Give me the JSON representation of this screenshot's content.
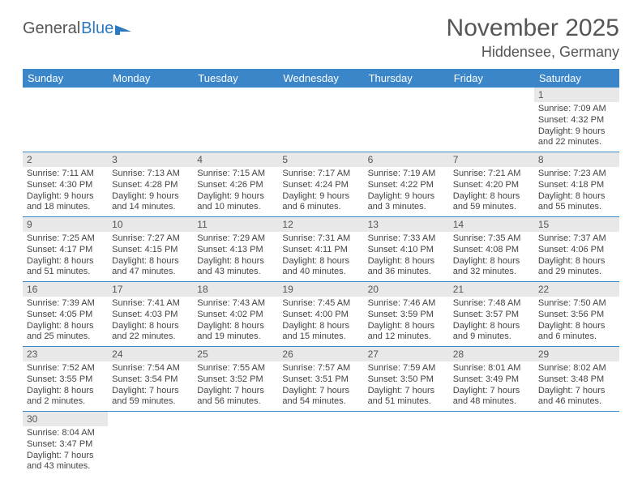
{
  "brand": {
    "part1": "General",
    "part2": "Blue"
  },
  "title": "November 2025",
  "location": "Hiddensee, Germany",
  "colors": {
    "header_bg": "#3a86c8",
    "header_fg": "#ffffff",
    "daynum_bg": "#e8e8e8",
    "cell_border": "#3a86c8",
    "text": "#444444",
    "brand_blue": "#2d79c0"
  },
  "day_headers": [
    "Sunday",
    "Monday",
    "Tuesday",
    "Wednesday",
    "Thursday",
    "Friday",
    "Saturday"
  ],
  "weeks": [
    [
      {
        "n": "",
        "sunrise": "",
        "sunset": "",
        "daylight1": "",
        "daylight2": "",
        "empty": true
      },
      {
        "n": "",
        "sunrise": "",
        "sunset": "",
        "daylight1": "",
        "daylight2": "",
        "empty": true
      },
      {
        "n": "",
        "sunrise": "",
        "sunset": "",
        "daylight1": "",
        "daylight2": "",
        "empty": true
      },
      {
        "n": "",
        "sunrise": "",
        "sunset": "",
        "daylight1": "",
        "daylight2": "",
        "empty": true
      },
      {
        "n": "",
        "sunrise": "",
        "sunset": "",
        "daylight1": "",
        "daylight2": "",
        "empty": true
      },
      {
        "n": "",
        "sunrise": "",
        "sunset": "",
        "daylight1": "",
        "daylight2": "",
        "empty": true
      },
      {
        "n": "1",
        "sunrise": "Sunrise: 7:09 AM",
        "sunset": "Sunset: 4:32 PM",
        "daylight1": "Daylight: 9 hours",
        "daylight2": "and 22 minutes."
      }
    ],
    [
      {
        "n": "2",
        "sunrise": "Sunrise: 7:11 AM",
        "sunset": "Sunset: 4:30 PM",
        "daylight1": "Daylight: 9 hours",
        "daylight2": "and 18 minutes."
      },
      {
        "n": "3",
        "sunrise": "Sunrise: 7:13 AM",
        "sunset": "Sunset: 4:28 PM",
        "daylight1": "Daylight: 9 hours",
        "daylight2": "and 14 minutes."
      },
      {
        "n": "4",
        "sunrise": "Sunrise: 7:15 AM",
        "sunset": "Sunset: 4:26 PM",
        "daylight1": "Daylight: 9 hours",
        "daylight2": "and 10 minutes."
      },
      {
        "n": "5",
        "sunrise": "Sunrise: 7:17 AM",
        "sunset": "Sunset: 4:24 PM",
        "daylight1": "Daylight: 9 hours",
        "daylight2": "and 6 minutes."
      },
      {
        "n": "6",
        "sunrise": "Sunrise: 7:19 AM",
        "sunset": "Sunset: 4:22 PM",
        "daylight1": "Daylight: 9 hours",
        "daylight2": "and 3 minutes."
      },
      {
        "n": "7",
        "sunrise": "Sunrise: 7:21 AM",
        "sunset": "Sunset: 4:20 PM",
        "daylight1": "Daylight: 8 hours",
        "daylight2": "and 59 minutes."
      },
      {
        "n": "8",
        "sunrise": "Sunrise: 7:23 AM",
        "sunset": "Sunset: 4:18 PM",
        "daylight1": "Daylight: 8 hours",
        "daylight2": "and 55 minutes."
      }
    ],
    [
      {
        "n": "9",
        "sunrise": "Sunrise: 7:25 AM",
        "sunset": "Sunset: 4:17 PM",
        "daylight1": "Daylight: 8 hours",
        "daylight2": "and 51 minutes."
      },
      {
        "n": "10",
        "sunrise": "Sunrise: 7:27 AM",
        "sunset": "Sunset: 4:15 PM",
        "daylight1": "Daylight: 8 hours",
        "daylight2": "and 47 minutes."
      },
      {
        "n": "11",
        "sunrise": "Sunrise: 7:29 AM",
        "sunset": "Sunset: 4:13 PM",
        "daylight1": "Daylight: 8 hours",
        "daylight2": "and 43 minutes."
      },
      {
        "n": "12",
        "sunrise": "Sunrise: 7:31 AM",
        "sunset": "Sunset: 4:11 PM",
        "daylight1": "Daylight: 8 hours",
        "daylight2": "and 40 minutes."
      },
      {
        "n": "13",
        "sunrise": "Sunrise: 7:33 AM",
        "sunset": "Sunset: 4:10 PM",
        "daylight1": "Daylight: 8 hours",
        "daylight2": "and 36 minutes."
      },
      {
        "n": "14",
        "sunrise": "Sunrise: 7:35 AM",
        "sunset": "Sunset: 4:08 PM",
        "daylight1": "Daylight: 8 hours",
        "daylight2": "and 32 minutes."
      },
      {
        "n": "15",
        "sunrise": "Sunrise: 7:37 AM",
        "sunset": "Sunset: 4:06 PM",
        "daylight1": "Daylight: 8 hours",
        "daylight2": "and 29 minutes."
      }
    ],
    [
      {
        "n": "16",
        "sunrise": "Sunrise: 7:39 AM",
        "sunset": "Sunset: 4:05 PM",
        "daylight1": "Daylight: 8 hours",
        "daylight2": "and 25 minutes."
      },
      {
        "n": "17",
        "sunrise": "Sunrise: 7:41 AM",
        "sunset": "Sunset: 4:03 PM",
        "daylight1": "Daylight: 8 hours",
        "daylight2": "and 22 minutes."
      },
      {
        "n": "18",
        "sunrise": "Sunrise: 7:43 AM",
        "sunset": "Sunset: 4:02 PM",
        "daylight1": "Daylight: 8 hours",
        "daylight2": "and 19 minutes."
      },
      {
        "n": "19",
        "sunrise": "Sunrise: 7:45 AM",
        "sunset": "Sunset: 4:00 PM",
        "daylight1": "Daylight: 8 hours",
        "daylight2": "and 15 minutes."
      },
      {
        "n": "20",
        "sunrise": "Sunrise: 7:46 AM",
        "sunset": "Sunset: 3:59 PM",
        "daylight1": "Daylight: 8 hours",
        "daylight2": "and 12 minutes."
      },
      {
        "n": "21",
        "sunrise": "Sunrise: 7:48 AM",
        "sunset": "Sunset: 3:57 PM",
        "daylight1": "Daylight: 8 hours",
        "daylight2": "and 9 minutes."
      },
      {
        "n": "22",
        "sunrise": "Sunrise: 7:50 AM",
        "sunset": "Sunset: 3:56 PM",
        "daylight1": "Daylight: 8 hours",
        "daylight2": "and 6 minutes."
      }
    ],
    [
      {
        "n": "23",
        "sunrise": "Sunrise: 7:52 AM",
        "sunset": "Sunset: 3:55 PM",
        "daylight1": "Daylight: 8 hours",
        "daylight2": "and 2 minutes."
      },
      {
        "n": "24",
        "sunrise": "Sunrise: 7:54 AM",
        "sunset": "Sunset: 3:54 PM",
        "daylight1": "Daylight: 7 hours",
        "daylight2": "and 59 minutes."
      },
      {
        "n": "25",
        "sunrise": "Sunrise: 7:55 AM",
        "sunset": "Sunset: 3:52 PM",
        "daylight1": "Daylight: 7 hours",
        "daylight2": "and 56 minutes."
      },
      {
        "n": "26",
        "sunrise": "Sunrise: 7:57 AM",
        "sunset": "Sunset: 3:51 PM",
        "daylight1": "Daylight: 7 hours",
        "daylight2": "and 54 minutes."
      },
      {
        "n": "27",
        "sunrise": "Sunrise: 7:59 AM",
        "sunset": "Sunset: 3:50 PM",
        "daylight1": "Daylight: 7 hours",
        "daylight2": "and 51 minutes."
      },
      {
        "n": "28",
        "sunrise": "Sunrise: 8:01 AM",
        "sunset": "Sunset: 3:49 PM",
        "daylight1": "Daylight: 7 hours",
        "daylight2": "and 48 minutes."
      },
      {
        "n": "29",
        "sunrise": "Sunrise: 8:02 AM",
        "sunset": "Sunset: 3:48 PM",
        "daylight1": "Daylight: 7 hours",
        "daylight2": "and 46 minutes."
      }
    ],
    [
      {
        "n": "30",
        "sunrise": "Sunrise: 8:04 AM",
        "sunset": "Sunset: 3:47 PM",
        "daylight1": "Daylight: 7 hours",
        "daylight2": "and 43 minutes."
      },
      {
        "n": "",
        "sunrise": "",
        "sunset": "",
        "daylight1": "",
        "daylight2": "",
        "empty": true
      },
      {
        "n": "",
        "sunrise": "",
        "sunset": "",
        "daylight1": "",
        "daylight2": "",
        "empty": true
      },
      {
        "n": "",
        "sunrise": "",
        "sunset": "",
        "daylight1": "",
        "daylight2": "",
        "empty": true
      },
      {
        "n": "",
        "sunrise": "",
        "sunset": "",
        "daylight1": "",
        "daylight2": "",
        "empty": true
      },
      {
        "n": "",
        "sunrise": "",
        "sunset": "",
        "daylight1": "",
        "daylight2": "",
        "empty": true
      },
      {
        "n": "",
        "sunrise": "",
        "sunset": "",
        "daylight1": "",
        "daylight2": "",
        "empty": true
      }
    ]
  ]
}
